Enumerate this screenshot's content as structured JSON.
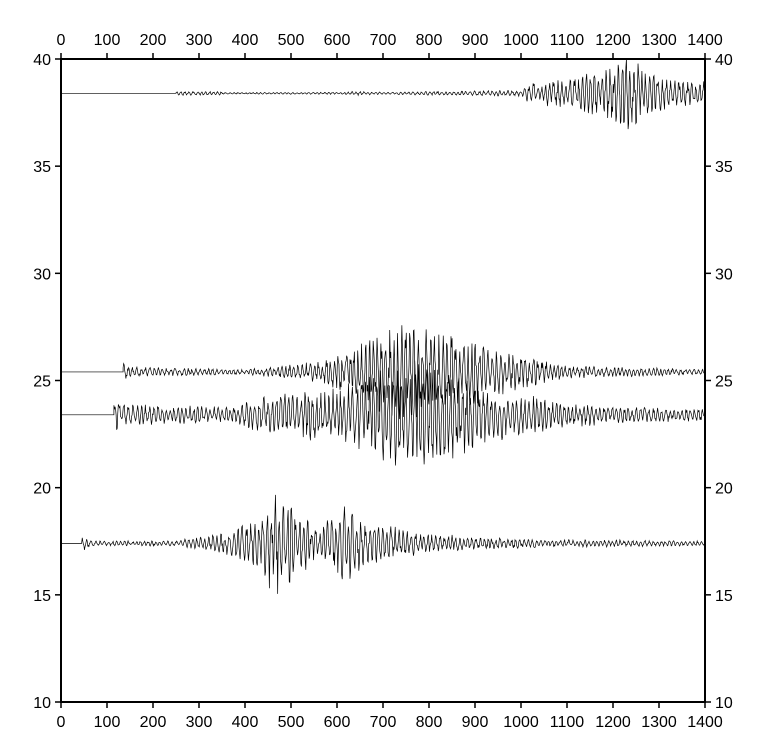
{
  "chart_data": {
    "type": "line",
    "title": "",
    "xlabel": "",
    "ylabel": "",
    "xlim": [
      0,
      1400
    ],
    "ylim": [
      10,
      40
    ],
    "x_ticks": [
      0,
      100,
      200,
      300,
      400,
      500,
      600,
      700,
      800,
      900,
      1000,
      1100,
      1200,
      1300,
      1400
    ],
    "x_tick_labels": [
      "0",
      "100",
      "200",
      "300",
      "400",
      "500",
      "600",
      "700",
      "800",
      "900",
      "1000",
      "1100",
      "1200",
      "1300",
      "1400"
    ],
    "y_ticks": [
      10,
      15,
      20,
      25,
      30,
      35,
      40
    ],
    "y_tick_labels": [
      "10",
      "15",
      "20",
      "25",
      "30",
      "35",
      "40"
    ],
    "grid": false,
    "series": [
      {
        "baseline": 38.4,
        "onset": 250,
        "seed": 11,
        "envelope": [
          [
            250,
            0.08
          ],
          [
            340,
            0.08
          ],
          [
            360,
            0.03
          ],
          [
            600,
            0.04
          ],
          [
            640,
            0.08
          ],
          [
            700,
            0.05
          ],
          [
            1000,
            0.12
          ],
          [
            1020,
            0.4
          ],
          [
            1100,
            0.6
          ],
          [
            1180,
            0.9
          ],
          [
            1230,
            1.6
          ],
          [
            1260,
            1.0
          ],
          [
            1320,
            0.6
          ],
          [
            1400,
            0.45
          ]
        ]
      },
      {
        "baseline": 25.4,
        "onset": 135,
        "seed": 23,
        "envelope": [
          [
            135,
            0.5
          ],
          [
            150,
            0.2
          ],
          [
            400,
            0.1
          ],
          [
            560,
            0.4
          ],
          [
            650,
            1.1
          ],
          [
            700,
            1.6
          ],
          [
            750,
            2.0
          ],
          [
            850,
            1.6
          ],
          [
            950,
            0.9
          ],
          [
            1020,
            0.6
          ],
          [
            1100,
            0.25
          ],
          [
            1300,
            0.15
          ],
          [
            1400,
            0.1
          ]
        ]
      },
      {
        "baseline": 23.4,
        "onset": 115,
        "seed": 37,
        "envelope": [
          [
            115,
            0.7
          ],
          [
            140,
            0.4
          ],
          [
            380,
            0.3
          ],
          [
            420,
            0.7
          ],
          [
            600,
            1.1
          ],
          [
            680,
            1.7
          ],
          [
            750,
            2.1
          ],
          [
            850,
            1.8
          ],
          [
            950,
            1.0
          ],
          [
            1100,
            0.5
          ],
          [
            1250,
            0.3
          ],
          [
            1400,
            0.25
          ]
        ]
      },
      {
        "baseline": 17.4,
        "onset": 45,
        "seed": 53,
        "envelope": [
          [
            45,
            0.3
          ],
          [
            70,
            0.1
          ],
          [
            250,
            0.1
          ],
          [
            350,
            0.4
          ],
          [
            420,
            0.9
          ],
          [
            470,
            2.1
          ],
          [
            520,
            1.4
          ],
          [
            560,
            0.5
          ],
          [
            620,
            1.7
          ],
          [
            660,
            1.0
          ],
          [
            750,
            0.5
          ],
          [
            900,
            0.25
          ],
          [
            1100,
            0.15
          ],
          [
            1400,
            0.1
          ]
        ]
      }
    ]
  }
}
